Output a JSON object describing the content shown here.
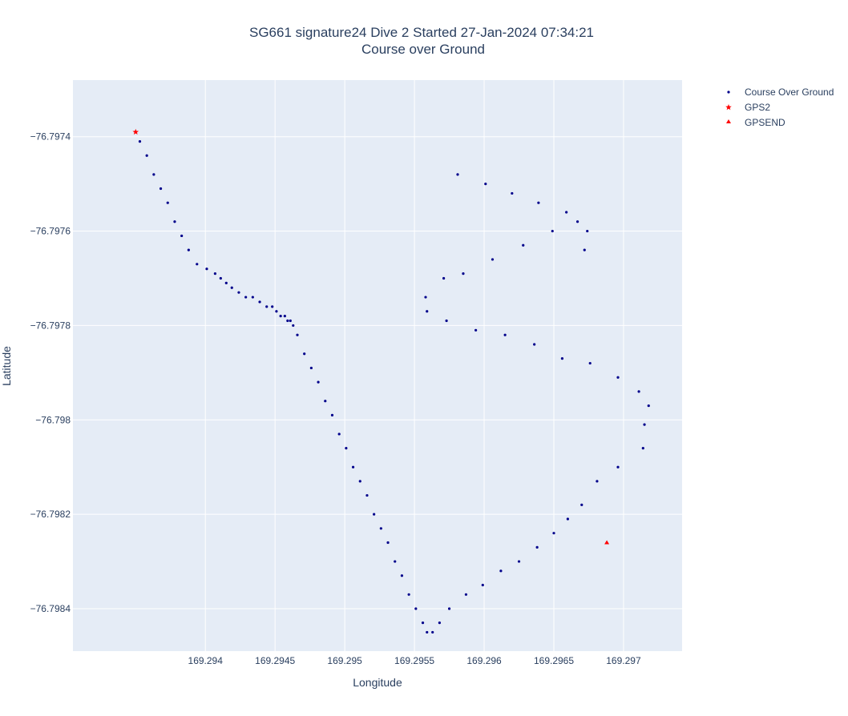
{
  "chart_data": {
    "type": "scatter",
    "title_line1": "SG661 signature24 Dive 2 Started 27-Jan-2024 07:34:21",
    "title_line2": "Course over Ground",
    "xlabel": "Longitude",
    "ylabel": "Latitude",
    "xlim": [
      169.29305,
      169.29742
    ],
    "ylim": [
      -76.79849,
      -76.79728
    ],
    "xticks": [
      {
        "value": 169.294,
        "label": "169.294"
      },
      {
        "value": 169.2945,
        "label": "169.2945"
      },
      {
        "value": 169.295,
        "label": "169.295"
      },
      {
        "value": 169.2955,
        "label": "169.2955"
      },
      {
        "value": 169.296,
        "label": "169.296"
      },
      {
        "value": 169.2965,
        "label": "169.2965"
      },
      {
        "value": 169.297,
        "label": "169.297"
      }
    ],
    "yticks": [
      {
        "value": -76.7974,
        "label": "−76.7974"
      },
      {
        "value": -76.7976,
        "label": "−76.7976"
      },
      {
        "value": -76.7978,
        "label": "−76.7978"
      },
      {
        "value": -76.798,
        "label": "−76.798"
      },
      {
        "value": -76.7982,
        "label": "−76.7982"
      },
      {
        "value": -76.7984,
        "label": "−76.7984"
      }
    ],
    "grid": true,
    "legend_position": "top-right",
    "colors": {
      "plot_bg": "#e5ecf6",
      "grid": "#ffffff",
      "course": "#00008b",
      "gps": "#ff0000",
      "text": "#2a3f5f"
    },
    "series": [
      {
        "name": "Course Over Ground",
        "marker": "dot",
        "points": [
          [
            169.29353,
            -76.79741
          ],
          [
            169.29358,
            -76.79744
          ],
          [
            169.29363,
            -76.79748
          ],
          [
            169.29368,
            -76.79751
          ],
          [
            169.29373,
            -76.79754
          ],
          [
            169.29378,
            -76.79758
          ],
          [
            169.29383,
            -76.79761
          ],
          [
            169.29388,
            -76.79764
          ],
          [
            169.29394,
            -76.79767
          ],
          [
            169.29401,
            -76.79768
          ],
          [
            169.29407,
            -76.79769
          ],
          [
            169.29411,
            -76.7977
          ],
          [
            169.29415,
            -76.79771
          ],
          [
            169.29419,
            -76.79772
          ],
          [
            169.29424,
            -76.79773
          ],
          [
            169.29429,
            -76.79774
          ],
          [
            169.29434,
            -76.79774
          ],
          [
            169.29439,
            -76.79775
          ],
          [
            169.29444,
            -76.79776
          ],
          [
            169.29448,
            -76.79776
          ],
          [
            169.29451,
            -76.79777
          ],
          [
            169.29454,
            -76.79778
          ],
          [
            169.29457,
            -76.79778
          ],
          [
            169.29459,
            -76.79779
          ],
          [
            169.29461,
            -76.79779
          ],
          [
            169.29463,
            -76.7978
          ],
          [
            169.29466,
            -76.79782
          ],
          [
            169.29471,
            -76.79786
          ],
          [
            169.29476,
            -76.79789
          ],
          [
            169.29481,
            -76.79792
          ],
          [
            169.29486,
            -76.79796
          ],
          [
            169.29491,
            -76.79799
          ],
          [
            169.29496,
            -76.79803
          ],
          [
            169.29501,
            -76.79806
          ],
          [
            169.29506,
            -76.7981
          ],
          [
            169.29511,
            -76.79813
          ],
          [
            169.29516,
            -76.79816
          ],
          [
            169.29521,
            -76.7982
          ],
          [
            169.29526,
            -76.79823
          ],
          [
            169.29531,
            -76.79826
          ],
          [
            169.29536,
            -76.7983
          ],
          [
            169.29541,
            -76.79833
          ],
          [
            169.29546,
            -76.79837
          ],
          [
            169.29551,
            -76.7984
          ],
          [
            169.29556,
            -76.79843
          ],
          [
            169.29559,
            -76.79845
          ],
          [
            169.29563,
            -76.79845
          ],
          [
            169.29568,
            -76.79843
          ],
          [
            169.29575,
            -76.7984
          ],
          [
            169.29587,
            -76.79837
          ],
          [
            169.29599,
            -76.79835
          ],
          [
            169.29612,
            -76.79832
          ],
          [
            169.29625,
            -76.7983
          ],
          [
            169.29638,
            -76.79827
          ],
          [
            169.2965,
            -76.79824
          ],
          [
            169.2966,
            -76.79821
          ],
          [
            169.2967,
            -76.79818
          ],
          [
            169.29681,
            -76.79813
          ],
          [
            169.29696,
            -76.7981
          ],
          [
            169.29714,
            -76.79806
          ],
          [
            169.29715,
            -76.79801
          ],
          [
            169.29718,
            -76.79797
          ],
          [
            169.29711,
            -76.79794
          ],
          [
            169.29696,
            -76.79791
          ],
          [
            169.29676,
            -76.79788
          ],
          [
            169.29656,
            -76.79787
          ],
          [
            169.29636,
            -76.79784
          ],
          [
            169.29615,
            -76.79782
          ],
          [
            169.29594,
            -76.79781
          ],
          [
            169.29573,
            -76.79779
          ],
          [
            169.29559,
            -76.79777
          ],
          [
            169.29558,
            -76.79774
          ],
          [
            169.29571,
            -76.7977
          ],
          [
            169.29585,
            -76.79769
          ],
          [
            169.29606,
            -76.79766
          ],
          [
            169.29628,
            -76.79763
          ],
          [
            169.29649,
            -76.7976
          ],
          [
            169.29667,
            -76.79758
          ],
          [
            169.29672,
            -76.79764
          ],
          [
            169.29674,
            -76.7976
          ],
          [
            169.29659,
            -76.79756
          ],
          [
            169.29639,
            -76.79754
          ],
          [
            169.2962,
            -76.79752
          ],
          [
            169.29601,
            -76.7975
          ],
          [
            169.29581,
            -76.79748
          ]
        ]
      },
      {
        "name": "GPS2",
        "marker": "star",
        "points": [
          [
            169.2935,
            -76.79739
          ]
        ]
      },
      {
        "name": "GPSEND",
        "marker": "triangle",
        "points": [
          [
            169.29688,
            -76.79826
          ]
        ]
      }
    ]
  }
}
